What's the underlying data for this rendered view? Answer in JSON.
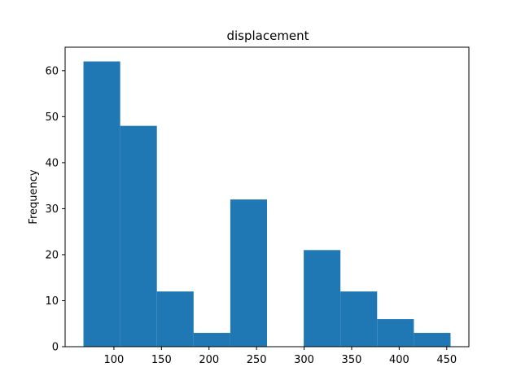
{
  "chart_data": {
    "type": "bar",
    "title": "displacement",
    "xlabel": "",
    "ylabel": "Frequency",
    "bins": [
      {
        "x0": 68.0,
        "x1": 106.6,
        "count": 62
      },
      {
        "x0": 106.6,
        "x1": 145.2,
        "count": 48
      },
      {
        "x0": 145.2,
        "x1": 183.8,
        "count": 12
      },
      {
        "x0": 183.8,
        "x1": 222.4,
        "count": 3
      },
      {
        "x0": 222.4,
        "x1": 261.0,
        "count": 32
      },
      {
        "x0": 261.0,
        "x1": 299.6,
        "count": 0
      },
      {
        "x0": 299.6,
        "x1": 338.2,
        "count": 21
      },
      {
        "x0": 338.2,
        "x1": 376.8,
        "count": 12
      },
      {
        "x0": 376.8,
        "x1": 415.4,
        "count": 6
      },
      {
        "x0": 415.4,
        "x1": 454.0,
        "count": 3
      }
    ],
    "xlim": [
      48.7,
      473.3
    ],
    "ylim": [
      0,
      65.1
    ],
    "xticks": [
      100,
      150,
      200,
      250,
      300,
      350,
      400,
      450
    ],
    "yticks": [
      0,
      10,
      20,
      30,
      40,
      50,
      60
    ],
    "bar_color": "#1f77b4",
    "grid": false,
    "legend": "none"
  }
}
